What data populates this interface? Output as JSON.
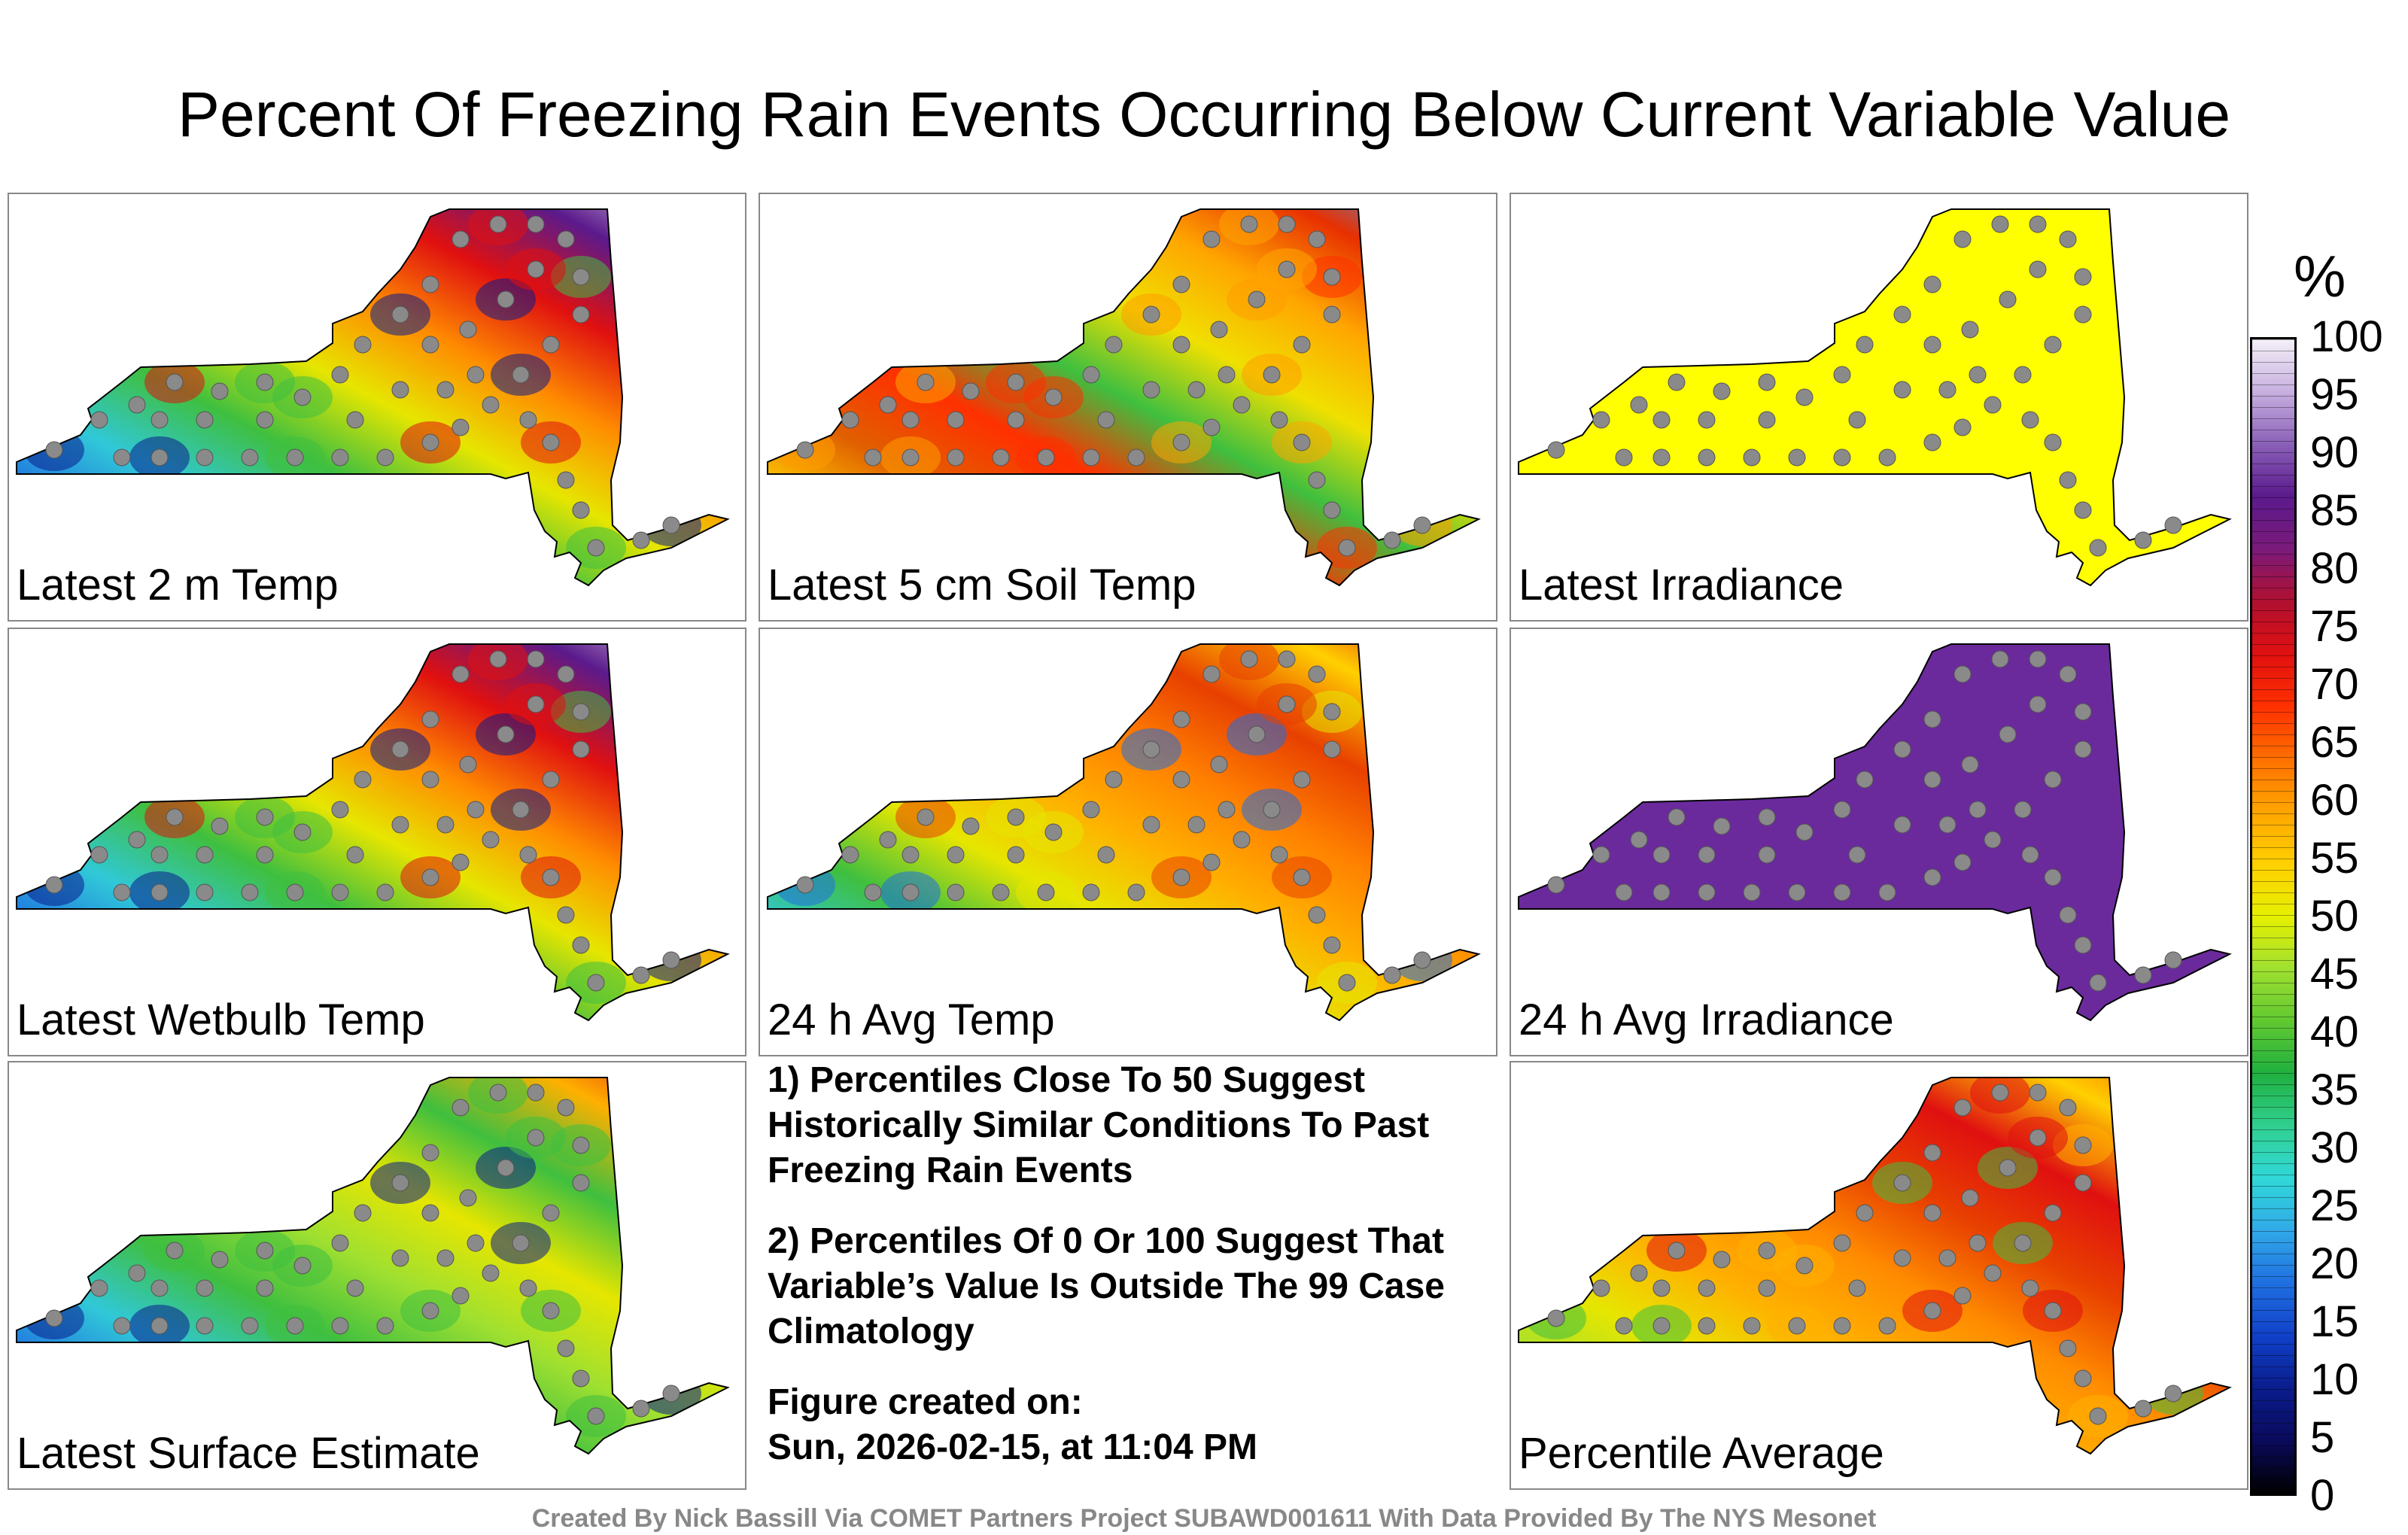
{
  "title": "Percent Of Freezing Rain Events Occurring Below Current Variable Value",
  "panels": [
    {
      "label": "Latest 2 m Temp",
      "colors": [
        "#0a1c8c",
        "#1f6fe0",
        "#30c8d8",
        "#3fbf3f",
        "#e6e600",
        "#ff8c00",
        "#e01010",
        "#5b1a8c",
        "#e8d8f0"
      ]
    },
    {
      "label": "Latest 5 cm Soil Temp",
      "colors": [
        "#ff9c00",
        "#ffd000",
        "#e06000",
        "#ff3000",
        "#3fbf3f",
        "#f0e000",
        "#ffa500",
        "#e83000",
        "#40a0ff"
      ]
    },
    {
      "label": "Latest Irradiance",
      "colors": [
        "#ffff00",
        "#ffff00",
        "#ffff00",
        "#ffff00",
        "#ffff00",
        "#ffff00",
        "#ffff00",
        "#ffff00",
        "#ffff00"
      ]
    },
    {
      "label": "Latest Wetbulb Temp",
      "colors": [
        "#0a1c8c",
        "#1f6fe0",
        "#30c8d8",
        "#3fbf3f",
        "#e6e600",
        "#ff8c00",
        "#e01010",
        "#5b1a8c",
        "#e8d8f0"
      ]
    },
    {
      "label": "24 h Avg Temp",
      "colors": [
        "#1f6fe0",
        "#30c8d8",
        "#3fbf3f",
        "#e6e600",
        "#ffb000",
        "#ff8000",
        "#e84000",
        "#ffd000",
        "#e01010"
      ]
    },
    {
      "label": "24 h Avg Irradiance",
      "colors": [
        "#6a2a9c",
        "#6a2a9c",
        "#6a2a9c",
        "#6a2a9c",
        "#6a2a9c",
        "#6a2a9c",
        "#6a2a9c",
        "#6a2a9c",
        "#6a2a9c"
      ]
    },
    {
      "label": "Latest Surface Estimate",
      "colors": [
        "#0a1c8c",
        "#1f6fe0",
        "#30c8d8",
        "#3fbf3f",
        "#a0e030",
        "#e6e600",
        "#3fbf3f",
        "#ffb000",
        "#e01010"
      ]
    },
    {
      "label": "Percentile Average",
      "colors": [
        "#3fbf3f",
        "#a0e030",
        "#e6e600",
        "#ffb000",
        "#ff8c00",
        "#e84000",
        "#e01010",
        "#ffd000",
        "#ff5000"
      ]
    }
  ],
  "notes": {
    "note1": "1) Percentiles Close To 50 Suggest Historically Similar Conditions To Past Freezing Rain Events",
    "note2": "2) Percentiles Of 0 Or 100 Suggest That Variable’s Value Is Outside The 99 Case Climatology",
    "created_label": "Figure created on:",
    "created_date": "Sun, 2026-02-15, at 11:04 PM"
  },
  "colorbar": {
    "unit": "%",
    "ticks": [
      "100",
      "95",
      "90",
      "85",
      "80",
      "75",
      "70",
      "65",
      "60",
      "55",
      "50",
      "45",
      "40",
      "35",
      "30",
      "25",
      "20",
      "15",
      "10",
      "5",
      "0"
    ],
    "colors": [
      "#000000",
      "#0a0a5a",
      "#0a1c8c",
      "#1040c8",
      "#1f6fe0",
      "#30a8e8",
      "#30d8d8",
      "#30d090",
      "#20b040",
      "#60c830",
      "#a0e030",
      "#e6f000",
      "#ffd000",
      "#ffa500",
      "#ff7000",
      "#ff3000",
      "#e01010",
      "#b01030",
      "#7a1a7a",
      "#5b1a8c",
      "#8a60b8",
      "#c8b0e0",
      "#f4f0f8"
    ]
  },
  "footer": "Created By Nick Bassill Via COMET Partners Project SUBAWD001611 With Data Provided By The NYS Mesonet"
}
